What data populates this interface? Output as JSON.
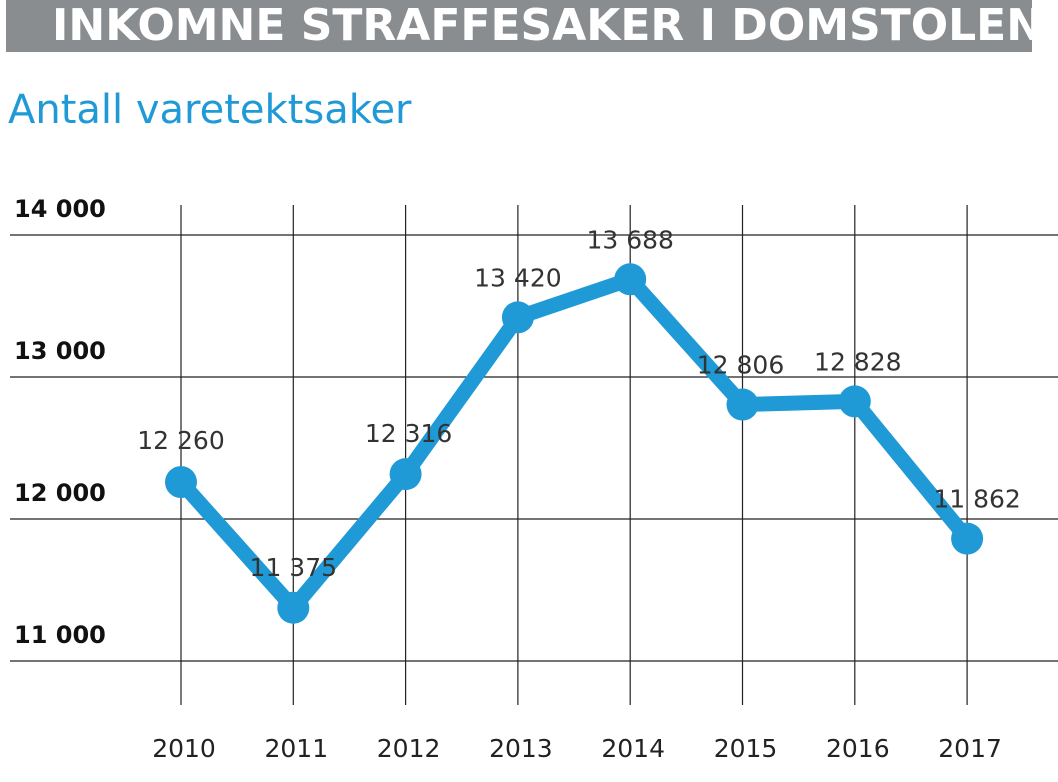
{
  "header": {
    "banner_title": "INKOMNE STRAFFESAKER I DOMSTOLENE",
    "subtitle": "Antall varetektsaker"
  },
  "colors": {
    "banner_bg": "#8a8d90",
    "subtitle": "#1f9ad6",
    "series_line": "#1f9ad6"
  },
  "chart_data": {
    "type": "line",
    "title": "Antall varetektsaker",
    "categories": [
      "2010",
      "2011",
      "2012",
      "2013",
      "2014",
      "2015",
      "2016",
      "2017"
    ],
    "series": [
      {
        "values": [
          12260,
          11375,
          12316,
          13420,
          13688,
          12806,
          12828,
          11862
        ],
        "labels": [
          "12 260",
          "11 375",
          "12 316",
          "13 420",
          "13 688",
          "12 806",
          "12 828",
          "11 862"
        ]
      }
    ],
    "y_ticks": [
      {
        "value": 11000,
        "label": "11 000"
      },
      {
        "value": 12000,
        "label": "12 000"
      },
      {
        "value": 13000,
        "label": "13 000"
      },
      {
        "value": 14000,
        "label": "14 000"
      }
    ],
    "ylim": [
      10800,
      14200
    ],
    "grid": true,
    "xlabel": "",
    "ylabel": ""
  }
}
